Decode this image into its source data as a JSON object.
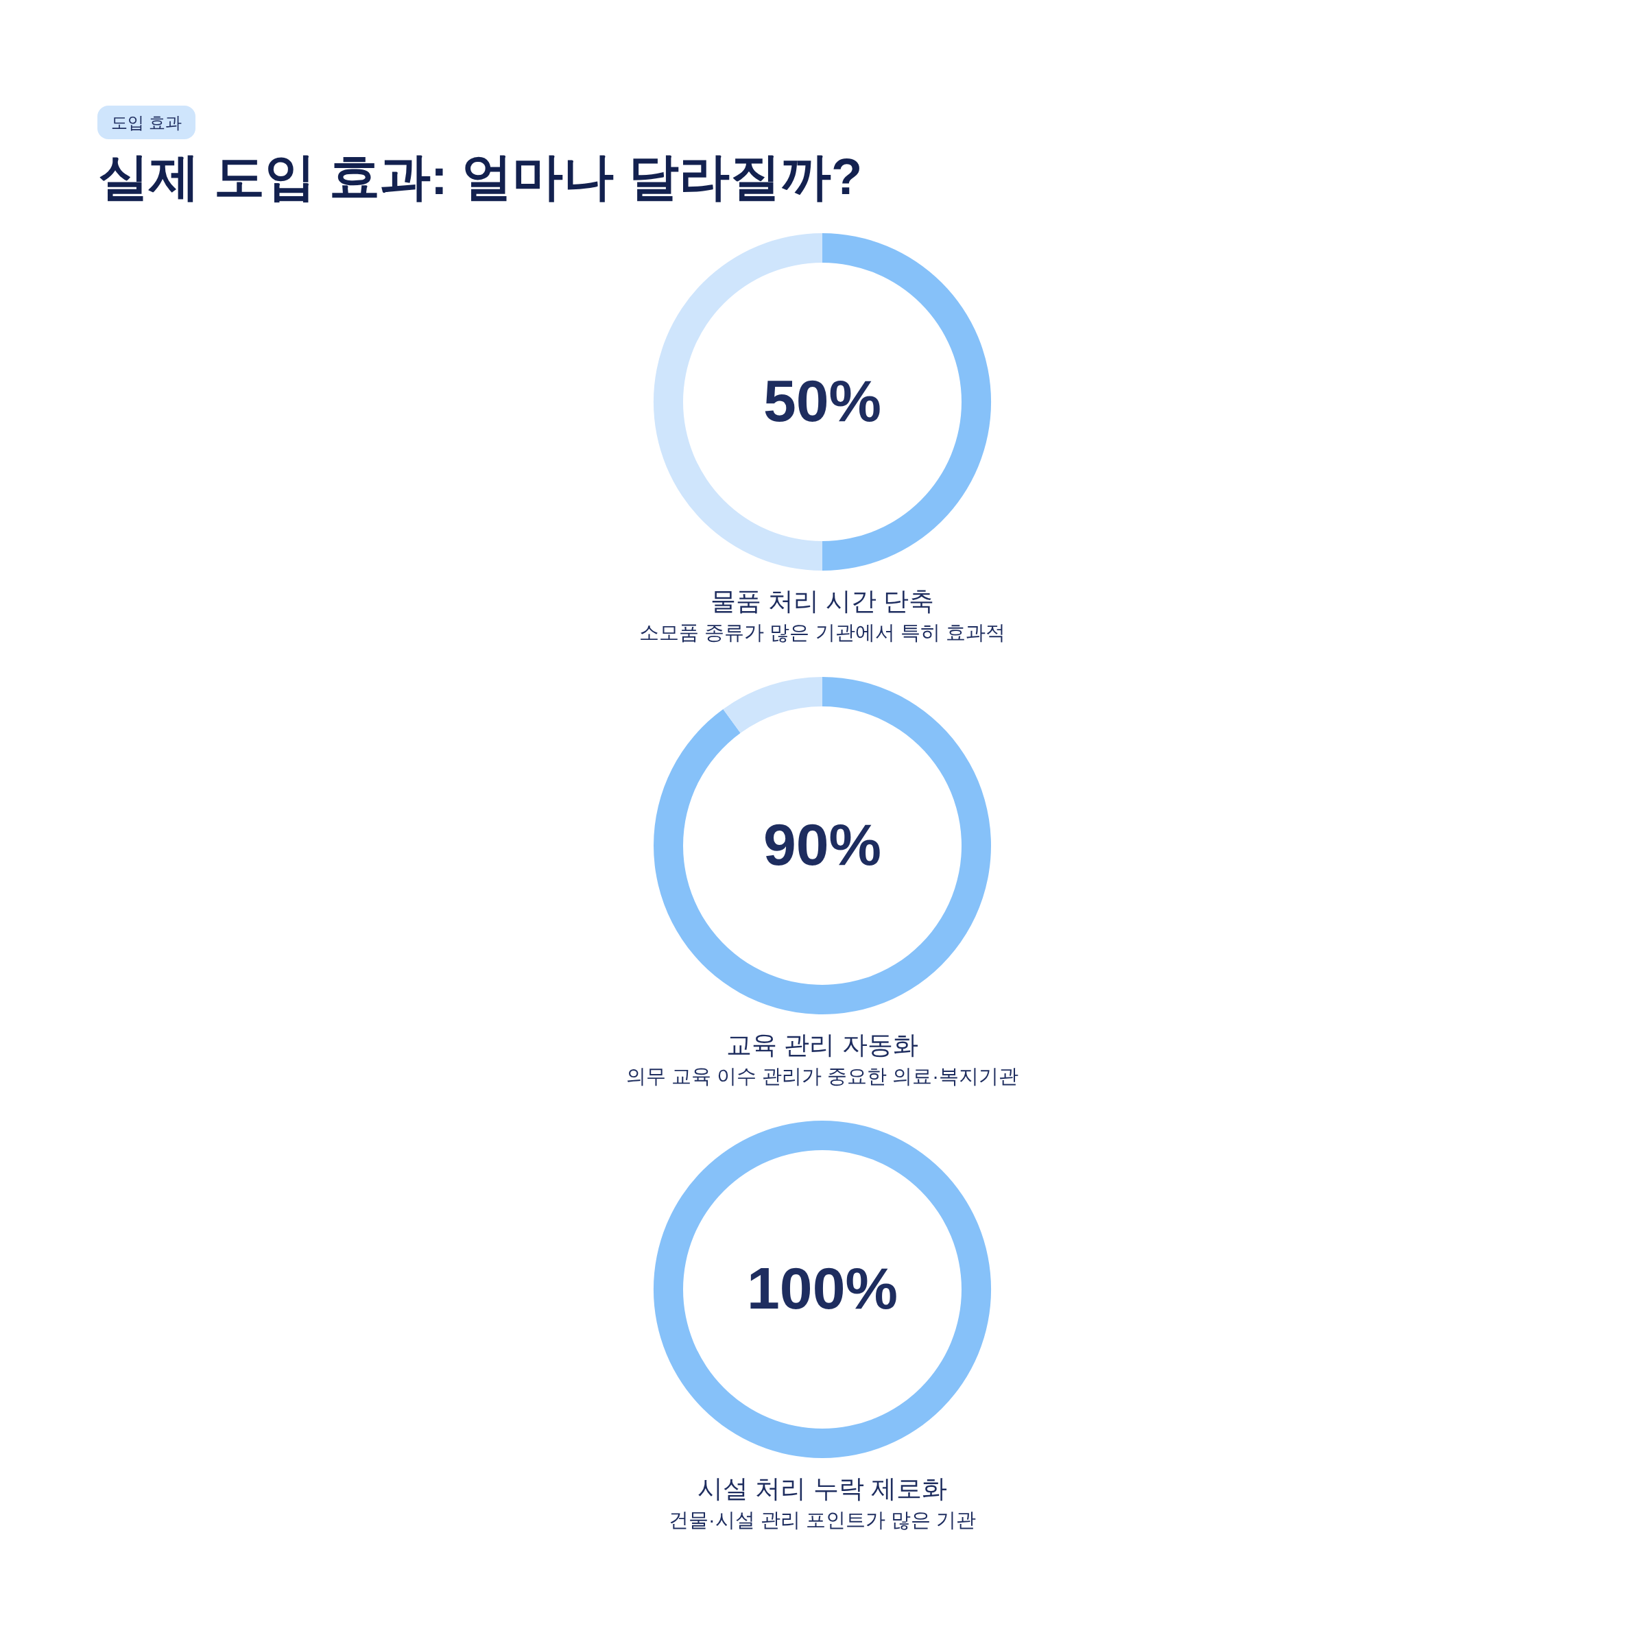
{
  "chart_data": [
    {
      "type": "other",
      "title": "실제 도입 효과: 얼마나 달라질까?",
      "annotations": [
        "도입 효과"
      ]
    },
    {
      "type": "donut",
      "title": "물품 처리 시간 단축",
      "subtitle": "소모품 종류가 많은 기관에서 특히 효과적",
      "categories": [
        null,
        null
      ],
      "values": [
        50,
        50
      ],
      "colors": [
        "#86c1f9",
        "#cfe5fc"
      ],
      "value_labels": [
        "50%",
        null
      ]
    },
    {
      "type": "donut",
      "title": "교육 관리 자동화",
      "subtitle": "의무 교육 이수 관리가 중요한 의료·복지기관",
      "categories": [
        null,
        null
      ],
      "values": [
        90,
        10
      ],
      "colors": [
        "#86c1f9",
        "#cfe5fc"
      ],
      "value_labels": [
        "90%",
        null
      ]
    },
    {
      "type": "donut",
      "title": "시설 처리 누락 제로화",
      "subtitle": "건물·시설 관리 포인트가 많은 기관",
      "categories": [
        null
      ],
      "values": [
        100
      ],
      "colors": [
        "#86c1f9"
      ],
      "value_labels": [
        "100%"
      ]
    }
  ]
}
